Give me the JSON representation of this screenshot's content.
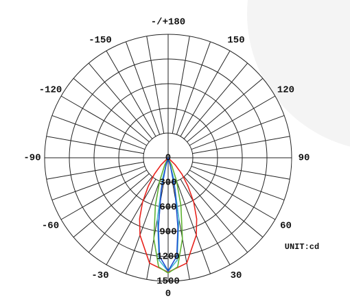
{
  "chart_data": {
    "type": "polar",
    "unit_label": "UNIT:cd",
    "rlim": [
      0,
      1500
    ],
    "rticks": [
      0,
      300,
      600,
      900,
      1200,
      1500
    ],
    "angle_ticks": [
      {
        "value": 180,
        "label": "-/+180"
      },
      -150,
      150,
      -120,
      120,
      -90,
      90,
      -60,
      60,
      -30,
      30,
      0
    ],
    "angular_grid_step": 10,
    "series": [
      {
        "color": "#e8221c",
        "angles": [
          -50,
          -45,
          -40,
          -35,
          -30,
          -25,
          -20,
          -10,
          0,
          10,
          20,
          25,
          30,
          35,
          40,
          45,
          50
        ],
        "values": [
          0,
          120,
          260,
          420,
          620,
          820,
          1000,
          1300,
          1390,
          1300,
          1000,
          820,
          620,
          420,
          260,
          120,
          0
        ]
      },
      {
        "color": "#5cb030",
        "angles": [
          -30,
          -25,
          -20,
          -15,
          -10,
          -5,
          0,
          5,
          10,
          15,
          20,
          25,
          30
        ],
        "values": [
          0,
          100,
          300,
          600,
          1000,
          1330,
          1400,
          1330,
          1000,
          600,
          300,
          100,
          0
        ]
      },
      {
        "color": "#40b8d0",
        "angles": [
          -20,
          -15,
          -10,
          -5,
          0,
          5,
          10,
          15,
          20
        ],
        "values": [
          0,
          250,
          750,
          1250,
          1380,
          1250,
          750,
          250,
          0
        ]
      },
      {
        "color": "#1f4fd0",
        "angles": [
          -20,
          -16,
          -12,
          -8,
          -5,
          0,
          5,
          8,
          12,
          16,
          20
        ],
        "values": [
          0,
          100,
          400,
          850,
          1200,
          1375,
          1200,
          850,
          400,
          100,
          0
        ]
      }
    ]
  }
}
